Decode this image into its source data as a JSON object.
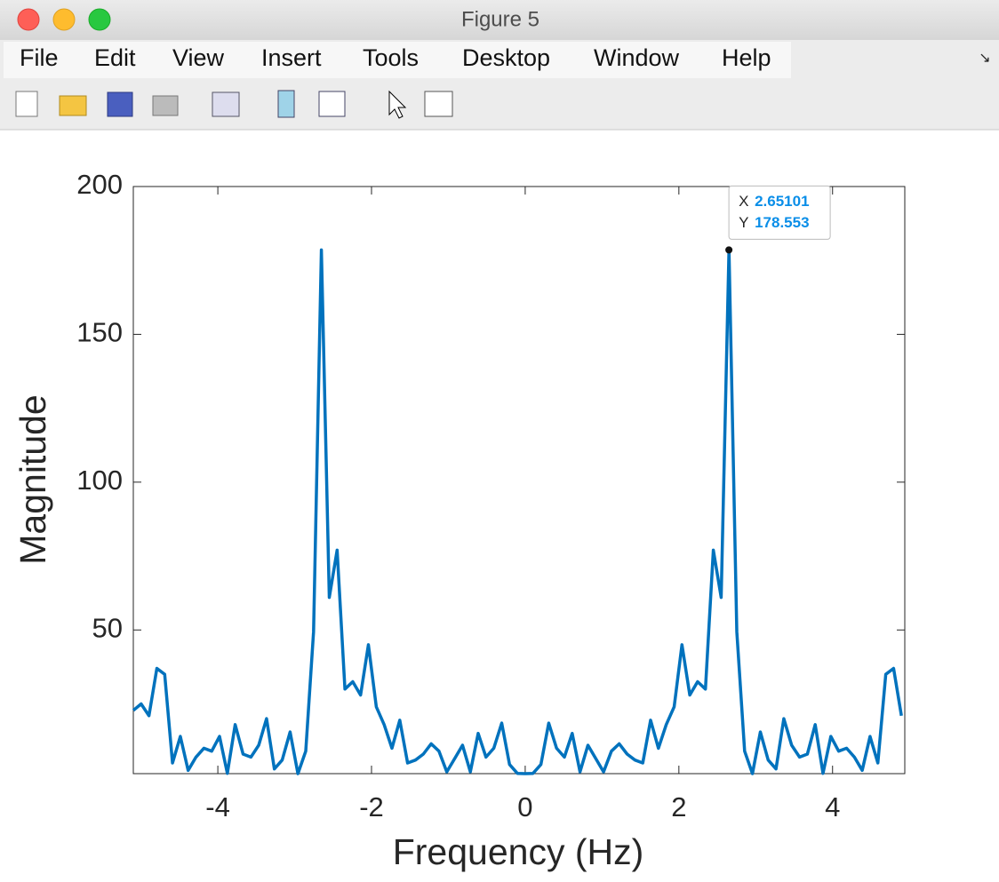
{
  "window": {
    "title": "Figure 5"
  },
  "menu": [
    "File",
    "Edit",
    "View",
    "Insert",
    "Tools",
    "Desktop",
    "Window",
    "Help"
  ],
  "chart_data": {
    "type": "line",
    "x_label": "Frequency (Hz)",
    "y_label": "Magnitude",
    "x": [
      -5.1,
      -4.998,
      -4.896,
      -4.794,
      -4.692,
      -4.59,
      -4.488,
      -4.386,
      -4.284,
      -4.182,
      -4.08,
      -3.978,
      -3.876,
      -3.774,
      -3.672,
      -3.57,
      -3.468,
      -3.366,
      -3.264,
      -3.162,
      -3.06,
      -2.958,
      -2.856,
      -2.754,
      -2.652,
      -2.55,
      -2.448,
      -2.346,
      -2.244,
      -2.142,
      -2.04,
      -1.938,
      -1.836,
      -1.734,
      -1.632,
      -1.53,
      -1.428,
      -1.326,
      -1.224,
      -1.122,
      -1.02,
      -0.918,
      -0.816,
      -0.714,
      -0.612,
      -0.51,
      -0.408,
      -0.306,
      -0.204,
      -0.102,
      0,
      0.102,
      0.204,
      0.306,
      0.408,
      0.51,
      0.612,
      0.714,
      0.816,
      0.918,
      1.02,
      1.122,
      1.224,
      1.326,
      1.428,
      1.53,
      1.632,
      1.734,
      1.836,
      1.938,
      2.04,
      2.142,
      2.244,
      2.346,
      2.448,
      2.55,
      2.652,
      2.754,
      2.856,
      2.958,
      3.06,
      3.162,
      3.264,
      3.366,
      3.468,
      3.57,
      3.672,
      3.774,
      3.876,
      3.978,
      4.08,
      4.182,
      4.284,
      4.386,
      4.488,
      4.59,
      4.692,
      4.794,
      4.896
    ],
    "series": [
      {
        "color": "#0072bd",
        "values": [
          22.8,
          25,
          21,
          37,
          35,
          5,
          14,
          2.5,
          7,
          10,
          9,
          14,
          1.5,
          18,
          8,
          7,
          11,
          20,
          3,
          6,
          15.5,
          1.4,
          9,
          49.4,
          178.553,
          61,
          77,
          30,
          32.5,
          28,
          45,
          24,
          18,
          10,
          19.5,
          5,
          6,
          8,
          11.5,
          9,
          2,
          6.5,
          11,
          2,
          15,
          7,
          10,
          18.5,
          4.5,
          1.5,
          1.4,
          1.5,
          4.5,
          18.5,
          10,
          7,
          15,
          2,
          11,
          6.5,
          2,
          9,
          11.5,
          8,
          6,
          5,
          19.5,
          10,
          18,
          24,
          45,
          28,
          32.5,
          30,
          77,
          61,
          178.553,
          49.4,
          9,
          1.4,
          15.5,
          6,
          3,
          20,
          11,
          7,
          8,
          18,
          1.5,
          14,
          9,
          10,
          7,
          2.5,
          14,
          5,
          35,
          37,
          21
        ]
      }
    ],
    "xlim": [
      -5.1,
      4.94
    ],
    "ylim": [
      1.4,
      200
    ],
    "xticks": [
      -4,
      -2,
      0,
      2,
      4
    ],
    "yticks": [
      50,
      100,
      150,
      200
    ],
    "datatip": {
      "x_label": "X",
      "x": 2.65101,
      "y_label": "Y",
      "y": 178.553
    }
  }
}
